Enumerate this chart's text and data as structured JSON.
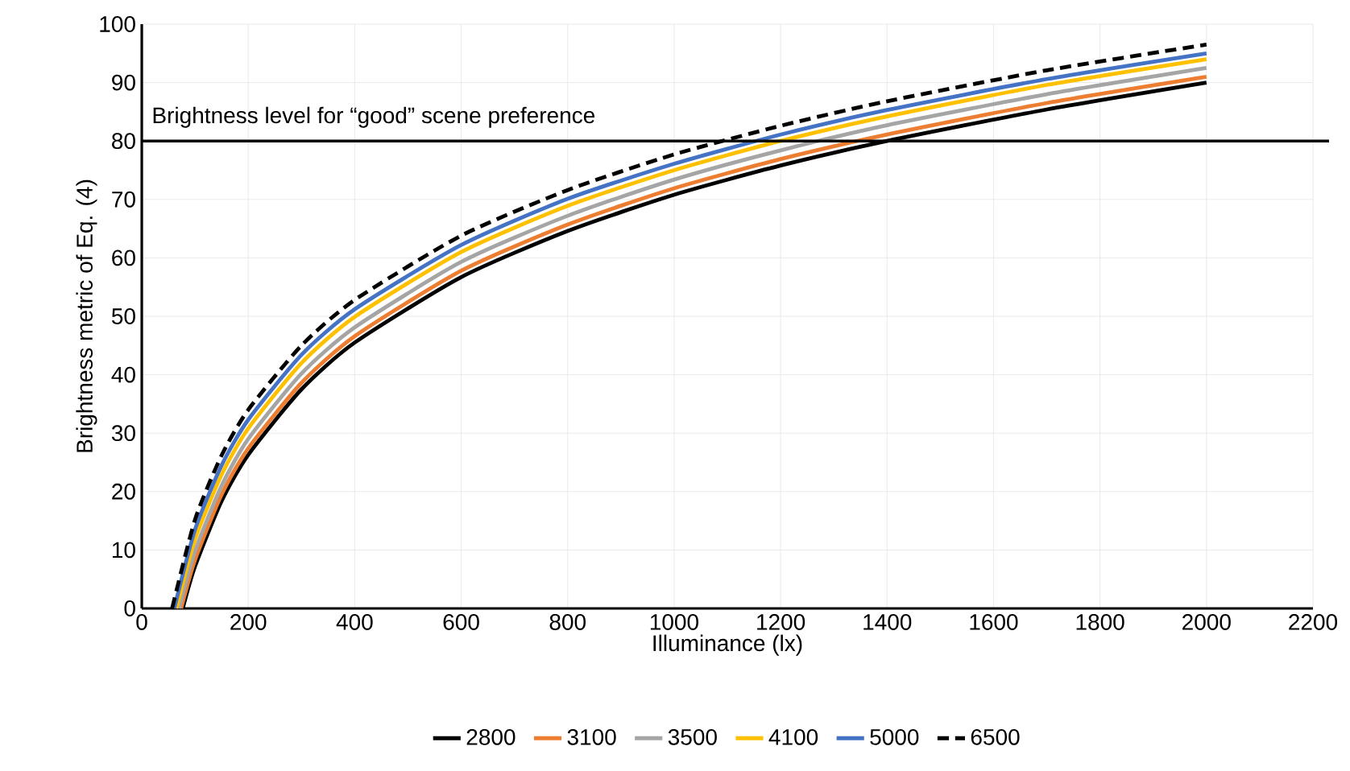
{
  "chart_data": {
    "type": "line",
    "xlabel": "Illuminance (lx)",
    "ylabel": "Brightness metric of Eq. (4)",
    "xlim": [
      0,
      2200
    ],
    "ylim": [
      0,
      100
    ],
    "xticks": [
      0,
      200,
      400,
      600,
      800,
      1000,
      1200,
      1400,
      1600,
      1800,
      2000,
      2200
    ],
    "yticks": [
      0,
      10,
      20,
      30,
      40,
      50,
      60,
      70,
      80,
      90,
      100
    ],
    "grid": true,
    "legend": "bottom",
    "marker": "none",
    "ref_lines": [
      {
        "axis": "y",
        "value": 80,
        "label": "Brightness level for “good” scene preference",
        "color": "#000000"
      }
    ],
    "series": [
      {
        "name": "2800",
        "color": "#000000",
        "line_style": "solid",
        "x": [
          77,
          100,
          150,
          200,
          300,
          400,
          600,
          800,
          1000,
          1200,
          1400,
          1700,
          2000
        ],
        "values": [
          0,
          7.2,
          18.4,
          26.3,
          37.5,
          45.5,
          56.7,
          64.6,
          70.8,
          75.8,
          80.0,
          85.4,
          90.0
        ]
      },
      {
        "name": "3100",
        "color": "#ed7d31",
        "line_style": "solid",
        "x": [
          74,
          100,
          150,
          200,
          300,
          400,
          600,
          800,
          1000,
          1200,
          1400,
          1700,
          2000
        ],
        "values": [
          0,
          8.3,
          19.5,
          27.4,
          38.6,
          46.6,
          57.8,
          65.7,
          71.9,
          76.9,
          81.1,
          86.5,
          91.0
        ]
      },
      {
        "name": "3500",
        "color": "#a5a5a5",
        "line_style": "solid",
        "x": [
          70,
          100,
          150,
          200,
          300,
          400,
          600,
          800,
          1000,
          1200,
          1400,
          1700,
          2000
        ],
        "values": [
          0,
          9.8,
          21.0,
          29.0,
          40.2,
          48.1,
          59.3,
          67.2,
          73.4,
          78.4,
          82.7,
          88.0,
          92.5
        ]
      },
      {
        "name": "4100",
        "color": "#ffc000",
        "line_style": "solid",
        "x": [
          65,
          100,
          150,
          200,
          300,
          400,
          600,
          800,
          1000,
          1200,
          1400,
          1700,
          2000
        ],
        "values": [
          0,
          11.8,
          22.9,
          30.8,
          42.0,
          49.9,
          61.0,
          68.9,
          75.0,
          80.0,
          84.2,
          89.6,
          94.0
        ]
      },
      {
        "name": "5000",
        "color": "#4472c4",
        "line_style": "solid",
        "x": [
          61,
          100,
          150,
          200,
          300,
          400,
          600,
          800,
          1000,
          1200,
          1400,
          1700,
          2000
        ],
        "values": [
          0,
          13.5,
          24.5,
          32.3,
          43.4,
          51.2,
          62.2,
          70.1,
          76.1,
          81.1,
          85.3,
          90.6,
          95.0
        ]
      },
      {
        "name": "6500",
        "color": "#000000",
        "line_style": "dashed",
        "x": [
          57,
          100,
          150,
          200,
          300,
          400,
          600,
          800,
          1000,
          1200,
          1400,
          1700,
          2000
        ],
        "values": [
          0,
          15.2,
          26.2,
          34.0,
          45.0,
          52.8,
          63.8,
          71.6,
          77.7,
          82.6,
          86.8,
          92.1,
          96.5
        ]
      }
    ]
  }
}
